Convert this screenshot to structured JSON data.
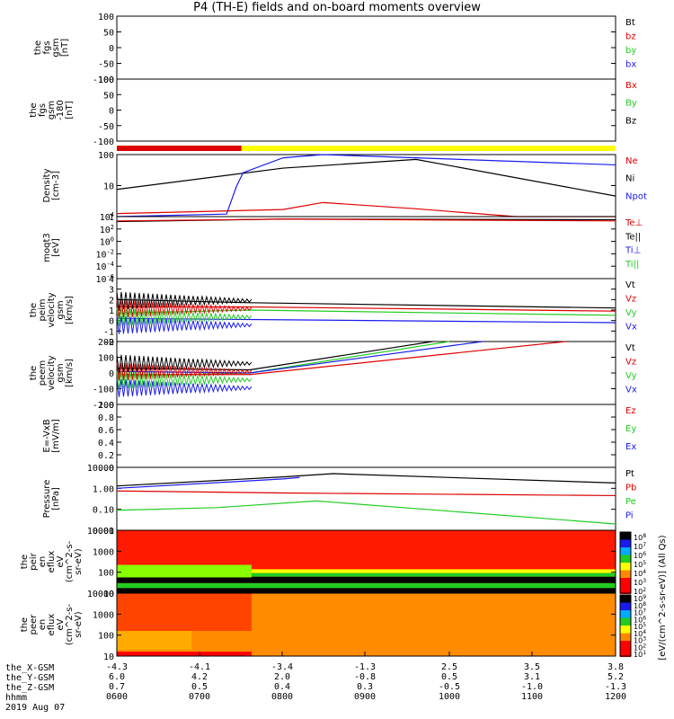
{
  "title": "P4 (TH-E) fields and on-board moments overview",
  "date_label": "2019 Aug 07",
  "colors": {
    "black": "#000000",
    "red": "#dd0000",
    "green": "#22cc22",
    "blue": "#1a1aee",
    "yellow": "#ffff00",
    "cbar": [
      "#000000",
      "#1a1aee",
      "#00aaff",
      "#22cc22",
      "#ffff00",
      "#ff8800",
      "#ff0000",
      "#ff0000"
    ]
  },
  "chart_data": [
    {
      "type": "line",
      "id": "fgs",
      "ylabel": [
        "the",
        "fgs",
        "gsm",
        "[nT]"
      ],
      "yticks": [
        "100",
        "50",
        "0",
        "-50",
        "-100"
      ],
      "ylim": [
        -100,
        100
      ],
      "legend": [
        {
          "name": "Bt",
          "color": "black"
        },
        {
          "name": "bz",
          "color": "red"
        },
        {
          "name": "by",
          "color": "green"
        },
        {
          "name": "bx",
          "color": "blue"
        }
      ],
      "series": []
    },
    {
      "type": "line",
      "id": "fgs2",
      "ylabel": [
        "the",
        "fgs",
        "gsm",
        "-180",
        "[nT]"
      ],
      "yticks": [
        "100",
        "50",
        "0",
        "-50",
        "-100"
      ],
      "ylim": [
        -100,
        100
      ],
      "legend": [
        {
          "name": "Bx",
          "color": "red"
        },
        {
          "name": "By",
          "color": "green"
        },
        {
          "name": "Bz",
          "color": "black"
        }
      ],
      "series": []
    },
    {
      "type": "line",
      "id": "density",
      "ylabel": [
        "Density",
        "[cm-3]"
      ],
      "yticks": [
        "100",
        "10",
        "1"
      ],
      "ylim": [
        0.8,
        200
      ],
      "log": true,
      "legend": [
        {
          "name": "Ne",
          "color": "red"
        },
        {
          "name": "Ni",
          "color": "black"
        },
        {
          "name": "Npot",
          "color": "blue"
        }
      ],
      "series": [
        {
          "color": "black",
          "x": [
            0,
            0.5,
            0.9,
            1.5
          ],
          "y": [
            9,
            60,
            130,
            5
          ]
        },
        {
          "color": "red",
          "x": [
            0,
            0.5,
            0.62,
            0.9,
            1.2,
            1.5
          ],
          "y": [
            1.05,
            1.5,
            2.8,
            1.6,
            0.8,
            0.8
          ]
        },
        {
          "color": "blue",
          "x": [
            0,
            0.33,
            0.36,
            0.38,
            0.5,
            0.62,
            1.5
          ],
          "y": [
            0.8,
            1,
            12,
            40,
            150,
            220,
            80
          ]
        }
      ]
    },
    {
      "type": "line",
      "id": "temp",
      "ylabel": [
        "moqt3",
        "[eV]"
      ],
      "yticks": [
        "10",
        "10",
        "10",
        "10",
        "10",
        "10"
      ],
      "ytick_exps": [
        "4",
        "2",
        "0",
        "-2",
        "-4",
        "-6"
      ],
      "ylim": [
        -6,
        4
      ],
      "log": true,
      "legend": [
        {
          "name": "Te⊥",
          "color": "red"
        },
        {
          "name": "Te||",
          "color": "black"
        },
        {
          "name": "Ti⊥",
          "color": "blue"
        },
        {
          "name": "Ti||",
          "color": "green"
        }
      ],
      "series": [
        {
          "color": "black",
          "x": [
            0,
            0.5,
            1.5
          ],
          "y": [
            3.2,
            3.6,
            3.5
          ]
        },
        {
          "color": "red",
          "x": [
            0,
            0.5,
            1.5
          ],
          "y": [
            3.3,
            3.6,
            3.3
          ]
        }
      ]
    },
    {
      "type": "line",
      "id": "peim",
      "ylabel": [
        "the",
        "peim",
        "velocity",
        "gsm",
        "[km/s]"
      ],
      "yticks": [
        "4",
        "3",
        "2",
        "1",
        "0",
        "-1",
        "-2"
      ],
      "ylim": [
        -2,
        4
      ],
      "legend": [
        {
          "name": "Vt",
          "color": "black"
        },
        {
          "name": "Vz",
          "color": "red"
        },
        {
          "name": "Vy",
          "color": "green"
        },
        {
          "name": "Vx",
          "color": "blue"
        }
      ],
      "series": [
        {
          "color": "black",
          "x": [
            0,
            0.4,
            1.5
          ],
          "y": [
            2.0,
            1.7,
            1.2
          ]
        },
        {
          "color": "red",
          "x": [
            0,
            0.4,
            1.5
          ],
          "y": [
            1.3,
            1.3,
            0.9
          ]
        },
        {
          "color": "green",
          "x": [
            0,
            0.4,
            1.5
          ],
          "y": [
            0.7,
            1.0,
            0.5
          ]
        },
        {
          "color": "blue",
          "x": [
            0,
            0.4,
            1.5
          ],
          "y": [
            0.2,
            0.1,
            -0.2
          ]
        }
      ]
    },
    {
      "type": "line",
      "id": "peem",
      "ylabel": [
        "the",
        "peem",
        "velocity",
        "gsm",
        "[km/s]"
      ],
      "yticks": [
        "200",
        "100",
        "0",
        "-100",
        "-200"
      ],
      "ylim": [
        -200,
        200
      ],
      "legend": [
        {
          "name": "Vt",
          "color": "black"
        },
        {
          "name": "Vz",
          "color": "red"
        },
        {
          "name": "Vy",
          "color": "green"
        },
        {
          "name": "Vx",
          "color": "blue"
        }
      ],
      "series": [
        {
          "color": "black",
          "x": [
            0,
            0.4,
            0.95
          ],
          "y": [
            30,
            20,
            200
          ]
        },
        {
          "color": "green",
          "x": [
            0,
            0.4,
            1.0
          ],
          "y": [
            -20,
            0,
            200
          ]
        },
        {
          "color": "blue",
          "x": [
            0,
            0.4,
            1.1
          ],
          "y": [
            10,
            0,
            200
          ]
        },
        {
          "color": "red",
          "x": [
            0,
            0.4,
            1.35
          ],
          "y": [
            -10,
            -10,
            200
          ]
        }
      ]
    },
    {
      "type": "line",
      "id": "efield",
      "ylabel": [
        "E=-VxB",
        "[mV/m]"
      ],
      "yticks": [
        "1.0",
        "0.8",
        "0.6",
        "0.4",
        "0.2",
        "0.0"
      ],
      "ylim": [
        0,
        1
      ],
      "legend": [
        {
          "name": "Ez",
          "color": "red"
        },
        {
          "name": "Ey",
          "color": "green"
        },
        {
          "name": "Ex",
          "color": "blue"
        }
      ],
      "series": []
    },
    {
      "type": "line",
      "id": "pressure",
      "ylabel": [
        "Pressure",
        "[nPa]"
      ],
      "yticks": [
        "10.00",
        "1.00",
        "0.10",
        "0.01"
      ],
      "ylim": [
        0.01,
        10
      ],
      "log": true,
      "legend": [
        {
          "name": "Pt",
          "color": "black"
        },
        {
          "name": "Pb",
          "color": "red"
        },
        {
          "name": "Pe",
          "color": "green"
        },
        {
          "name": "Pi",
          "color": "blue"
        }
      ],
      "series": [
        {
          "color": "black",
          "x": [
            0,
            0.5,
            0.65,
            1.5
          ],
          "y": [
            1.3,
            3.5,
            5,
            1.8
          ]
        },
        {
          "color": "blue",
          "x": [
            0,
            0.5,
            0.55
          ],
          "y": [
            1.0,
            2.8,
            3.3
          ]
        },
        {
          "color": "red",
          "x": [
            0,
            0.5,
            1.5
          ],
          "y": [
            0.75,
            0.6,
            0.45
          ]
        },
        {
          "color": "green",
          "x": [
            0,
            0.3,
            0.6,
            1.5
          ],
          "y": [
            0.09,
            0.12,
            0.25,
            0.02
          ]
        }
      ]
    },
    {
      "type": "heatmap",
      "id": "peir",
      "ylabel": [
        "the",
        "peir",
        "en",
        "eflux",
        "eV",
        "(cm^2-s-",
        "sr-eV)"
      ],
      "yticks": [
        "10000",
        "1000",
        "100",
        "10"
      ]
    },
    {
      "type": "heatmap",
      "id": "peer",
      "ylabel": [
        "the",
        "peer",
        "en",
        "eflux",
        "eV",
        "(cm^2-s-",
        "sr-eV)"
      ],
      "yticks": [
        "10000",
        "1000",
        "100",
        "10"
      ]
    }
  ],
  "colorbar": {
    "label": "[eV/(cm^2-s-sr-eV)] (All Qs)",
    "ticks_top": [
      "10",
      "10",
      "10",
      "10",
      "10",
      "10",
      "10"
    ],
    "ticks_top_exp": [
      "8",
      "7",
      "6",
      "5",
      "4",
      "3",
      "2"
    ],
    "ticks_bottom": [
      "10",
      "10",
      "10",
      "10",
      "10",
      "10",
      "10",
      "10",
      "10"
    ],
    "ticks_bottom_exp": [
      "9",
      "8",
      "7",
      "6",
      "5",
      "4",
      "3",
      "2",
      "1"
    ]
  },
  "xaxis": {
    "rows": [
      {
        "label": "the_X-GSM",
        "values": [
          "-4.3",
          "-4.1",
          "-3.4",
          "-1.3",
          "2.5",
          "3.5",
          "3.8"
        ]
      },
      {
        "label": "the_Y-GSM",
        "values": [
          "6.0",
          "4.2",
          "2.0",
          "-0.8",
          "0.5",
          "3.1",
          "5.2"
        ]
      },
      {
        "label": "the_Z-GSM",
        "values": [
          "0.7",
          "0.5",
          "0.4",
          "0.3",
          "-0.5",
          "-1.0",
          "-1.3"
        ]
      },
      {
        "label": "hhmm",
        "values": [
          "0600",
          "0700",
          "0800",
          "0900",
          "1000",
          "1100",
          "1200"
        ]
      }
    ]
  },
  "status_bar": {
    "colors": [
      "red",
      "yellow"
    ],
    "split": 0.25
  }
}
